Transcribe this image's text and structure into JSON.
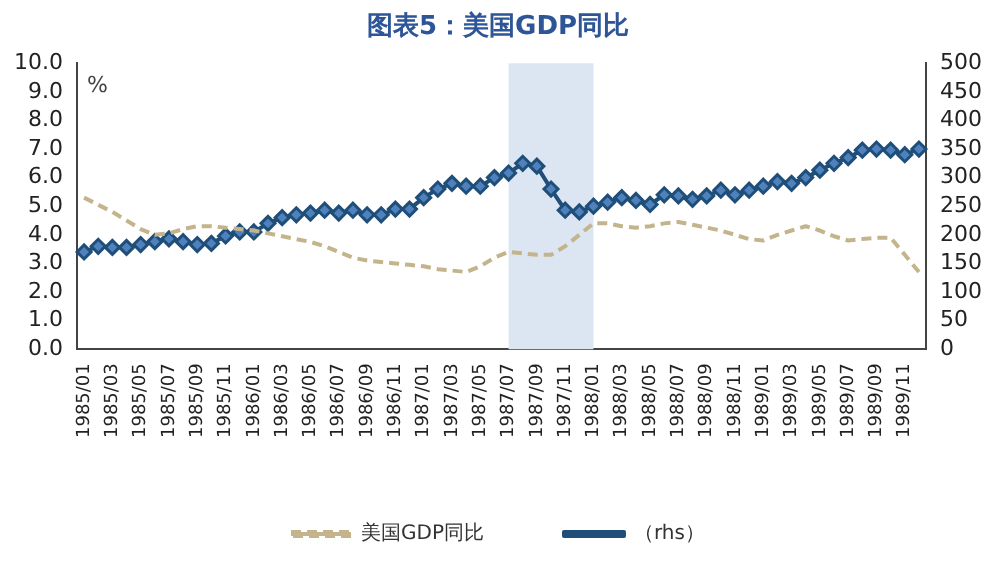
{
  "chart_data": {
    "type": "line",
    "title": "图表5：美国GDP同比",
    "ylabel": "%",
    "categories": [
      "1985/01",
      null,
      "1985/03",
      null,
      "1985/05",
      null,
      "1985/07",
      null,
      "1985/09",
      null,
      "1985/11",
      null,
      "1986/01",
      null,
      "1986/03",
      null,
      "1986/05",
      null,
      "1986/07",
      null,
      "1986/09",
      null,
      "1986/11",
      null,
      "1987/01",
      null,
      "1987/03",
      null,
      "1987/05",
      null,
      "1987/07",
      null,
      "1987/09",
      null,
      "1987/11",
      null,
      "1988/01",
      null,
      "1988/03",
      null,
      "1988/05",
      null,
      "1988/07",
      null,
      "1988/09",
      null,
      "1988/11",
      null,
      "1989/01",
      null,
      "1989/03",
      null,
      "1989/05",
      null,
      "1989/07",
      null,
      "1989/09",
      null,
      "1989/11",
      null
    ],
    "series": [
      {
        "name": "美国GDP同比",
        "color": "#c4b48c",
        "line_style": "dashed",
        "marker": "none",
        "values": [
          5.3,
          5.05,
          4.8,
          4.5,
          4.2,
          4.0,
          4.05,
          4.2,
          4.3,
          4.3,
          4.25,
          4.2,
          4.15,
          4.05,
          3.95,
          3.85,
          3.75,
          3.6,
          3.4,
          3.2,
          3.1,
          3.05,
          3.0,
          2.95,
          2.9,
          2.8,
          2.75,
          2.7,
          2.9,
          3.2,
          3.4,
          3.35,
          3.3,
          3.3,
          3.6,
          4.0,
          4.4,
          4.4,
          4.3,
          4.25,
          4.3,
          4.4,
          4.45,
          4.35,
          4.25,
          4.15,
          4.0,
          3.85,
          3.8,
          4.0,
          4.15,
          4.3,
          4.15,
          3.95,
          3.8,
          3.85,
          3.9,
          3.9,
          3.3,
          2.7
        ]
      },
      {
        "name": "（rhs）",
        "color": "#1f4e79",
        "axis": "y2",
        "line_style": "solid",
        "marker": "diamond",
        "values": [
          170,
          180,
          178,
          178,
          183,
          188,
          193,
          188,
          183,
          185,
          198,
          205,
          205,
          220,
          230,
          235,
          238,
          243,
          238,
          243,
          235,
          235,
          245,
          245,
          265,
          280,
          290,
          285,
          285,
          300,
          308,
          325,
          320,
          280,
          243,
          240,
          250,
          257,
          265,
          260,
          253,
          270,
          268,
          262,
          268,
          278,
          270,
          278,
          285,
          293,
          290,
          300,
          313,
          325,
          335,
          348,
          350,
          348,
          340,
          350
        ]
      }
    ],
    "ylim": [
      0,
      10
    ],
    "yticks": [
      {
        "value": 0,
        "label": "0.0"
      },
      {
        "value": 1,
        "label": "1.0"
      },
      {
        "value": 2,
        "label": "2.0"
      },
      {
        "value": 3,
        "label": "3.0"
      },
      {
        "value": 4,
        "label": "4.0"
      },
      {
        "value": 5,
        "label": "5.0"
      },
      {
        "value": 6,
        "label": "6.0"
      },
      {
        "value": 7,
        "label": "7.0"
      },
      {
        "value": 8,
        "label": "8.0"
      },
      {
        "value": 9,
        "label": "9.0"
      },
      {
        "value": 10,
        "label": "10.0"
      }
    ],
    "y2lim": [
      0,
      500
    ],
    "y2ticks": [
      0,
      50,
      100,
      150,
      200,
      250,
      300,
      350,
      400,
      450,
      500
    ],
    "bands": [
      {
        "axis": "x",
        "from": "1987/07",
        "to": "1988/01",
        "color": "#dce6f2"
      }
    ],
    "grid": false,
    "legend": "bottom"
  }
}
